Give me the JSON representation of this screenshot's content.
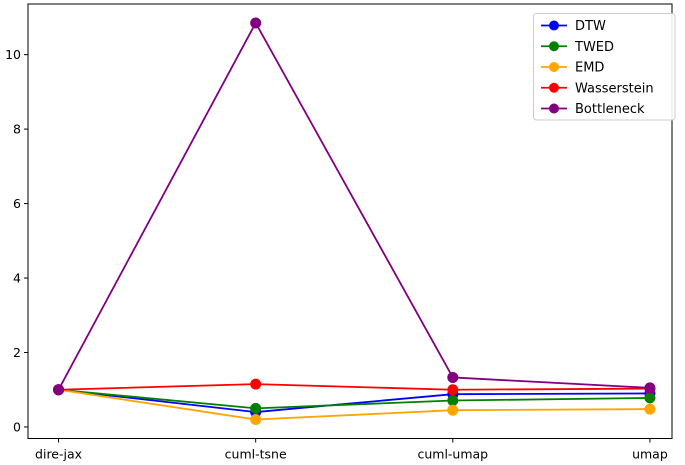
{
  "figure": {
    "background": "#ffffff",
    "axis_color": "#000000",
    "text_color": "#000000",
    "legend_border_color": "#cccccc",
    "legend_background": "#ffffff"
  },
  "chart_data": {
    "type": "line",
    "title": "",
    "xlabel": "",
    "ylabel": "",
    "categories": [
      "dire-jax",
      "cuml-tsne",
      "cuml-umap",
      "umap"
    ],
    "series": [
      {
        "name": "DTW",
        "color": "#0000ff",
        "marker": "o",
        "values": [
          1.0,
          0.4,
          0.88,
          0.9
        ]
      },
      {
        "name": "TWED",
        "color": "#008000",
        "marker": "o",
        "values": [
          1.0,
          0.5,
          0.71,
          0.78
        ]
      },
      {
        "name": "EMD",
        "color": "#ffa500",
        "marker": "o",
        "values": [
          1.0,
          0.2,
          0.45,
          0.48
        ]
      },
      {
        "name": "Wasserstein",
        "color": "#ff0000",
        "marker": "o",
        "values": [
          1.0,
          1.15,
          1.0,
          1.03
        ]
      },
      {
        "name": "Bottleneck",
        "color": "#800080",
        "marker": "o",
        "values": [
          1.0,
          10.85,
          1.33,
          1.05
        ]
      }
    ],
    "yticks": [
      0,
      2,
      4,
      6,
      8,
      10
    ],
    "ylim": [
      -0.31,
      11.36
    ],
    "xlim": [
      -0.155,
      3.112
    ],
    "grid": false,
    "legend": {
      "position": "upper right",
      "entries": [
        "DTW",
        "TWED",
        "EMD",
        "Wasserstein",
        "Bottleneck"
      ]
    }
  }
}
